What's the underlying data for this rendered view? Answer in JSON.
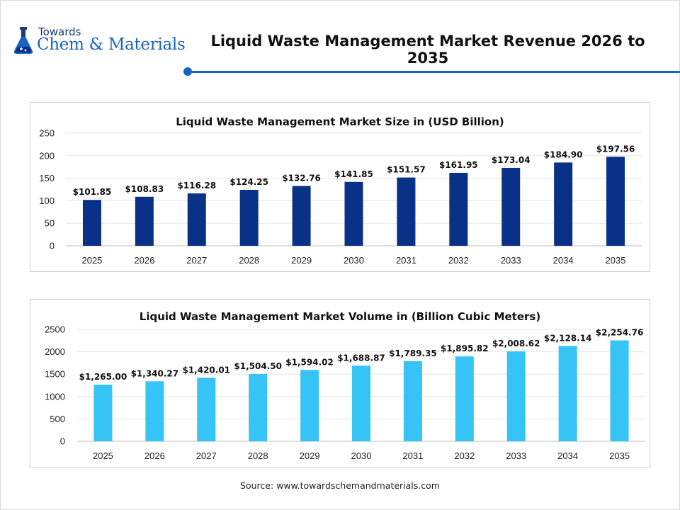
{
  "header": {
    "logo_small": "Towards",
    "logo_brand": "Chem & Materials",
    "title": "Liquid Waste Management Market Revenue 2026 to 2035"
  },
  "footer": {
    "source": "Source: www.towardschemandmaterials.com"
  },
  "colors": {
    "accent": "#1565c0",
    "bar_revenue": "#0a3188",
    "bar_volume": "#36c3f5"
  },
  "chart_data": [
    {
      "type": "bar",
      "title": "Liquid Waste Management Market Size in (USD Billion)",
      "categories": [
        "2025",
        "2026",
        "2027",
        "2028",
        "2029",
        "2030",
        "2031",
        "2032",
        "2033",
        "2034",
        "2035"
      ],
      "values": [
        101.85,
        108.83,
        116.28,
        124.25,
        132.76,
        141.85,
        151.57,
        161.95,
        173.04,
        184.9,
        197.56
      ],
      "data_labels": [
        "$101.85",
        "$108.83",
        "$116.28",
        "$124.25",
        "$132.76",
        "$141.85",
        "$151.57",
        "$161.95",
        "$173.04",
        "$184.90",
        "$197.56"
      ],
      "yticks": [
        "0",
        "50",
        "100",
        "150",
        "200",
        "250"
      ],
      "ylim": [
        0,
        250
      ],
      "grid": true,
      "legend": "none",
      "color": "#0a3188"
    },
    {
      "type": "bar",
      "title": "Liquid Waste Management Market Volume in (Billion Cubic Meters)",
      "categories": [
        "2025",
        "2026",
        "2027",
        "2028",
        "2029",
        "2030",
        "2031",
        "2032",
        "2033",
        "2034",
        "2035"
      ],
      "values": [
        1265.0,
        1340.27,
        1420.01,
        1504.5,
        1594.02,
        1688.87,
        1789.35,
        1895.82,
        2008.62,
        2128.14,
        2254.76
      ],
      "data_labels": [
        "$1,265.00",
        "$1,340.27",
        "$1,420.01",
        "$1,504.50",
        "$1,594.02",
        "$1,688.87",
        "$1,789.35",
        "$1,895.82",
        "$2,008.62",
        "$2,128.14",
        "$2,254.76"
      ],
      "yticks": [
        "0",
        "500",
        "1000",
        "1500",
        "2000",
        "2500"
      ],
      "ylim": [
        0,
        2500
      ],
      "grid": true,
      "legend": "none",
      "color": "#36c3f5"
    }
  ]
}
